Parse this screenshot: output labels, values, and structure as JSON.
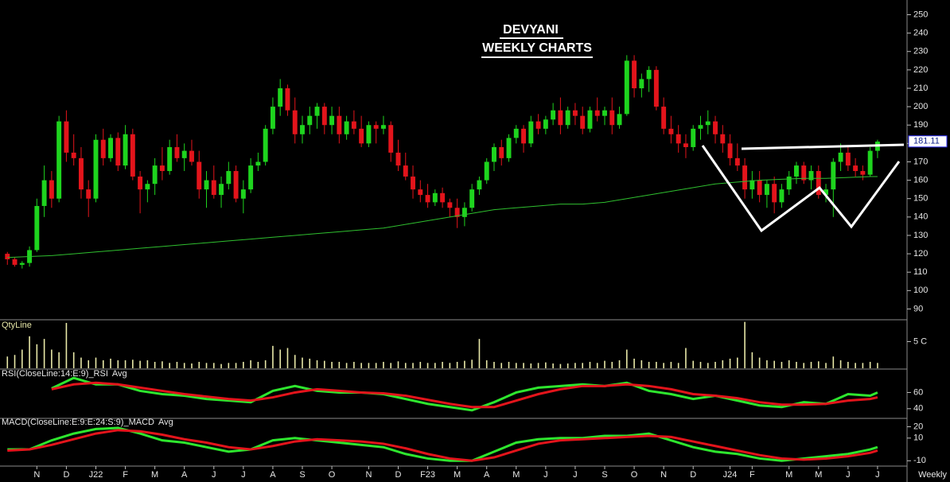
{
  "chart_data": [
    {
      "type": "candlestick",
      "title": "DEVYANI",
      "subtitle": "WEEKLY CHARTS",
      "up_color": "#1ed41e",
      "down_color": "#e3141b",
      "candles": [
        [
          120,
          121,
          114,
          117
        ],
        [
          117,
          118,
          113,
          114
        ],
        [
          114,
          116,
          112,
          115
        ],
        [
          115,
          124,
          113,
          122
        ],
        [
          122,
          150,
          121,
          146
        ],
        [
          146,
          168,
          140,
          160
        ],
        [
          160,
          165,
          145,
          150
        ],
        [
          150,
          195,
          148,
          192
        ],
        [
          192,
          198,
          170,
          175
        ],
        [
          175,
          185,
          168,
          172
        ],
        [
          172,
          178,
          150,
          155
        ],
        [
          155,
          160,
          140,
          150
        ],
        [
          150,
          185,
          148,
          182
        ],
        [
          182,
          188,
          168,
          172
        ],
        [
          172,
          185,
          170,
          183
        ],
        [
          183,
          186,
          165,
          168
        ],
        [
          168,
          190,
          166,
          185
        ],
        [
          185,
          188,
          160,
          162
        ],
        [
          162,
          165,
          142,
          155
        ],
        [
          155,
          160,
          148,
          158
        ],
        [
          158,
          172,
          152,
          168
        ],
        [
          168,
          178,
          160,
          165
        ],
        [
          165,
          182,
          163,
          178
        ],
        [
          178,
          185,
          170,
          172
        ],
        [
          172,
          180,
          165,
          176
        ],
        [
          176,
          182,
          168,
          170
        ],
        [
          170,
          176,
          150,
          155
        ],
        [
          155,
          165,
          145,
          160
        ],
        [
          160,
          168,
          150,
          152
        ],
        [
          152,
          162,
          145,
          158
        ],
        [
          158,
          170,
          155,
          165
        ],
        [
          165,
          168,
          148,
          150
        ],
        [
          150,
          160,
          142,
          155
        ],
        [
          155,
          172,
          153,
          168
        ],
        [
          168,
          175,
          165,
          170
        ],
        [
          170,
          190,
          168,
          188
        ],
        [
          188,
          205,
          185,
          200
        ],
        [
          200,
          215,
          195,
          210
        ],
        [
          210,
          212,
          195,
          198
        ],
        [
          198,
          205,
          180,
          185
        ],
        [
          185,
          195,
          180,
          190
        ],
        [
          190,
          200,
          185,
          195
        ],
        [
          195,
          202,
          188,
          200
        ],
        [
          200,
          202,
          185,
          190
        ],
        [
          190,
          200,
          185,
          195
        ],
        [
          195,
          200,
          180,
          185
        ],
        [
          185,
          195,
          182,
          192
        ],
        [
          192,
          198,
          185,
          188
        ],
        [
          188,
          195,
          178,
          180
        ],
        [
          180,
          192,
          178,
          190
        ],
        [
          190,
          192,
          180,
          188
        ],
        [
          188,
          195,
          185,
          190
        ],
        [
          190,
          192,
          170,
          175
        ],
        [
          175,
          182,
          165,
          168
        ],
        [
          168,
          175,
          160,
          162
        ],
        [
          162,
          168,
          150,
          155
        ],
        [
          155,
          160,
          148,
          152
        ],
        [
          152,
          158,
          145,
          148
        ],
        [
          148,
          155,
          146,
          153
        ],
        [
          153,
          156,
          145,
          148
        ],
        [
          148,
          150,
          140,
          145
        ],
        [
          145,
          150,
          134,
          140
        ],
        [
          140,
          148,
          135,
          145
        ],
        [
          145,
          158,
          143,
          155
        ],
        [
          155,
          162,
          152,
          160
        ],
        [
          160,
          172,
          158,
          170
        ],
        [
          170,
          180,
          165,
          178
        ],
        [
          178,
          182,
          168,
          172
        ],
        [
          172,
          185,
          170,
          183
        ],
        [
          183,
          190,
          180,
          188
        ],
        [
          188,
          190,
          175,
          180
        ],
        [
          180,
          195,
          178,
          192
        ],
        [
          192,
          196,
          185,
          188
        ],
        [
          188,
          195,
          185,
          193
        ],
        [
          193,
          202,
          190,
          198
        ],
        [
          198,
          205,
          185,
          190
        ],
        [
          190,
          200,
          188,
          198
        ],
        [
          198,
          202,
          190,
          195
        ],
        [
          195,
          200,
          185,
          188
        ],
        [
          188,
          200,
          186,
          198
        ],
        [
          198,
          205,
          192,
          195
        ],
        [
          195,
          200,
          190,
          198
        ],
        [
          198,
          205,
          185,
          190
        ],
        [
          190,
          200,
          188,
          196
        ],
        [
          196,
          228,
          195,
          225
        ],
        [
          225,
          228,
          205,
          210
        ],
        [
          210,
          218,
          205,
          215
        ],
        [
          215,
          222,
          208,
          220
        ],
        [
          220,
          222,
          198,
          200
        ],
        [
          200,
          205,
          185,
          188
        ],
        [
          188,
          195,
          180,
          185
        ],
        [
          185,
          190,
          175,
          180
        ],
        [
          180,
          185,
          172,
          178
        ],
        [
          178,
          190,
          176,
          188
        ],
        [
          188,
          195,
          182,
          190
        ],
        [
          190,
          198,
          185,
          192
        ],
        [
          192,
          195,
          180,
          185
        ],
        [
          185,
          190,
          175,
          180
        ],
        [
          180,
          185,
          168,
          172
        ],
        [
          172,
          180,
          165,
          168
        ],
        [
          168,
          172,
          150,
          155
        ],
        [
          155,
          165,
          150,
          160
        ],
        [
          160,
          165,
          148,
          152
        ],
        [
          152,
          160,
          145,
          158
        ],
        [
          158,
          162,
          142,
          148
        ],
        [
          148,
          158,
          145,
          155
        ],
        [
          155,
          165,
          152,
          162
        ],
        [
          162,
          170,
          158,
          168
        ],
        [
          168,
          170,
          158,
          160
        ],
        [
          160,
          168,
          155,
          165
        ],
        [
          165,
          168,
          150,
          152
        ],
        [
          152,
          158,
          148,
          155
        ],
        [
          155,
          172,
          140,
          170
        ],
        [
          170,
          180,
          165,
          175
        ],
        [
          175,
          178,
          165,
          168
        ],
        [
          168,
          172,
          162,
          165
        ],
        [
          165,
          168,
          160,
          163
        ],
        [
          163,
          178,
          162,
          176
        ],
        [
          176,
          182,
          172,
          181
        ]
      ],
      "ma": {
        "color": "#2fbf2f",
        "values": [
          118,
          118.5,
          119,
          120,
          121,
          122,
          123,
          124,
          125,
          126,
          127,
          128,
          129,
          130,
          131,
          132,
          133,
          134,
          136,
          138,
          140,
          142,
          144,
          145,
          146,
          147,
          147,
          148,
          150,
          152,
          154,
          156,
          158,
          159,
          160,
          160.5,
          161,
          161,
          161.5,
          162,
          162
        ]
      },
      "x": [
        0,
        3,
        6,
        9,
        12,
        15,
        18,
        21,
        24,
        27,
        30,
        33,
        36,
        39,
        42,
        45,
        48,
        51,
        54,
        57,
        60,
        63,
        66,
        69,
        72,
        75,
        78,
        81,
        84,
        87,
        90,
        93,
        96,
        99,
        102,
        105,
        108,
        111,
        114,
        117,
        118
      ],
      "xlim": [
        -1,
        122
      ],
      "ylim": [
        85,
        258
      ],
      "yticks": [
        90,
        100,
        110,
        120,
        130,
        140,
        150,
        160,
        170,
        180,
        190,
        200,
        210,
        220,
        230,
        240,
        250
      ],
      "last_price": 181.11
    },
    {
      "type": "bar",
      "title": "QtyLine",
      "color": "#e8e8a8",
      "xlim": [
        -1,
        122
      ],
      "ylim": [
        0,
        8.8
      ],
      "yticks": [
        {
          "value": 5,
          "label": "5 C"
        }
      ],
      "values": [
        2.2,
        2.5,
        3.5,
        6.0,
        4.5,
        5.5,
        3.5,
        3.0,
        8.5,
        3.0,
        2.0,
        1.5,
        2.0,
        1.5,
        1.8,
        1.5,
        1.5,
        1.6,
        1.4,
        1.5,
        1.2,
        1.3,
        1.0,
        1.2,
        1.0,
        0.9,
        1.2,
        1.0,
        1.0,
        0.8,
        1.0,
        1.0,
        1.2,
        1.5,
        1.2,
        1.5,
        4.2,
        3.5,
        3.8,
        2.5,
        2.0,
        1.8,
        1.5,
        1.4,
        1.2,
        1.2,
        1.0,
        1.2,
        1.0,
        1.0,
        1.0,
        1.2,
        1.0,
        1.3,
        1.0,
        1.0,
        1.2,
        1.0,
        1.0,
        1.2,
        1.0,
        1.2,
        1.4,
        1.6,
        5.5,
        1.5,
        1.2,
        1.0,
        1.2,
        1.0,
        1.0,
        0.9,
        1.0,
        1.1,
        0.9,
        0.8,
        0.9,
        1.0,
        1.0,
        1.2,
        1.0,
        1.4,
        1.2,
        1.5,
        3.5,
        1.8,
        1.5,
        1.2,
        1.2,
        1.0,
        1.2,
        1.0,
        3.8,
        1.4,
        1.2,
        1.0,
        1.2,
        1.5,
        1.8,
        2.0,
        8.7,
        3.0,
        2.0,
        1.5,
        1.4,
        1.2,
        1.5,
        1.2,
        1.0,
        1.2,
        1.3,
        1.0,
        2.2,
        1.5,
        1.2,
        1.0,
        1.0,
        1.2,
        1.0
      ]
    },
    {
      "type": "line",
      "xlim": [
        -1,
        122
      ],
      "ylim": [
        30,
        86
      ],
      "yticks": [
        40,
        60
      ],
      "x": [
        0,
        3,
        6,
        9,
        12,
        15,
        18,
        21,
        24,
        27,
        30,
        33,
        36,
        39,
        42,
        45,
        48,
        51,
        54,
        57,
        60,
        63,
        66,
        69,
        72,
        75,
        78,
        81,
        84,
        87,
        90,
        93,
        96,
        99,
        102,
        105,
        108,
        111,
        114,
        117,
        118
      ],
      "series": [
        {
          "name": "RSI(CloseLine:14:E:9)_RSI",
          "color": "#2ee62e",
          "values": [
            null,
            null,
            65,
            78,
            70,
            70,
            62,
            58,
            56,
            52,
            50,
            48,
            62,
            68,
            62,
            60,
            60,
            58,
            52,
            46,
            42,
            38,
            48,
            60,
            66,
            68,
            70,
            68,
            72,
            62,
            58,
            52,
            56,
            50,
            44,
            42,
            48,
            46,
            58,
            56,
            60
          ]
        },
        {
          "name": "Avg",
          "color": "#e3141b",
          "values": [
            null,
            null,
            64,
            70,
            72,
            70,
            66,
            62,
            58,
            55,
            52,
            50,
            54,
            60,
            64,
            62,
            60,
            59,
            56,
            51,
            46,
            42,
            42,
            50,
            58,
            64,
            68,
            68,
            70,
            68,
            64,
            58,
            56,
            53,
            48,
            45,
            45,
            46,
            50,
            52,
            54
          ]
        }
      ]
    },
    {
      "type": "line",
      "xlim": [
        -1,
        122
      ],
      "ylim": [
        -14,
        26
      ],
      "yticks": [
        -10,
        10,
        20
      ],
      "x": [
        0,
        3,
        6,
        9,
        12,
        15,
        18,
        21,
        24,
        27,
        30,
        33,
        36,
        39,
        42,
        45,
        48,
        51,
        54,
        57,
        60,
        63,
        66,
        69,
        72,
        75,
        78,
        81,
        84,
        87,
        90,
        93,
        96,
        99,
        102,
        105,
        108,
        111,
        114,
        117,
        118
      ],
      "series": [
        {
          "name": "MACD(CloseLine:E:9:E:24:S:9)_MACD",
          "color": "#2ee62e",
          "values": [
            0,
            0,
            8,
            14,
            18,
            19,
            14,
            8,
            6,
            2,
            -2,
            0,
            8,
            10,
            8,
            6,
            4,
            2,
            -4,
            -8,
            -10,
            -10,
            -2,
            6,
            9,
            10,
            10,
            12,
            12,
            14,
            8,
            2,
            -2,
            -4,
            -8,
            -10,
            -8,
            -6,
            -4,
            0,
            2
          ]
        },
        {
          "name": "Avg",
          "color": "#e3141b",
          "values": [
            -1,
            0,
            4,
            9,
            14,
            17,
            16,
            13,
            9,
            6,
            2,
            0,
            3,
            7,
            9,
            8,
            7,
            5,
            1,
            -4,
            -8,
            -10,
            -7,
            -1,
            5,
            8,
            9,
            10,
            11,
            12,
            11,
            7,
            3,
            -1,
            -5,
            -8,
            -9,
            -8,
            -6,
            -3,
            -1
          ]
        }
      ],
      "xticks": [
        {
          "value": 4,
          "label": "N"
        },
        {
          "value": 8,
          "label": "D"
        },
        {
          "value": 12,
          "label": "J22"
        },
        {
          "value": 16,
          "label": "F"
        },
        {
          "value": 20,
          "label": "M"
        },
        {
          "value": 24,
          "label": "A"
        },
        {
          "value": 28,
          "label": "J"
        },
        {
          "value": 32,
          "label": "J"
        },
        {
          "value": 36,
          "label": "A"
        },
        {
          "value": 40,
          "label": "S"
        },
        {
          "value": 44,
          "label": "O"
        },
        {
          "value": 49,
          "label": "N"
        },
        {
          "value": 53,
          "label": "D"
        },
        {
          "value": 57,
          "label": "F23"
        },
        {
          "value": 61,
          "label": "M"
        },
        {
          "value": 65,
          "label": "A"
        },
        {
          "value": 69,
          "label": "M"
        },
        {
          "value": 73,
          "label": "J"
        },
        {
          "value": 77,
          "label": "J"
        },
        {
          "value": 81,
          "label": "S"
        },
        {
          "value": 85,
          "label": "O"
        },
        {
          "value": 89,
          "label": "N"
        },
        {
          "value": 93,
          "label": "D"
        },
        {
          "value": 98,
          "label": "J24"
        },
        {
          "value": 101,
          "label": "F"
        },
        {
          "value": 106,
          "label": "M"
        },
        {
          "value": 110,
          "label": "M"
        },
        {
          "value": 114,
          "label": "J"
        },
        {
          "value": 118,
          "label": "J"
        }
      ],
      "period_label": "Weekly"
    }
  ]
}
